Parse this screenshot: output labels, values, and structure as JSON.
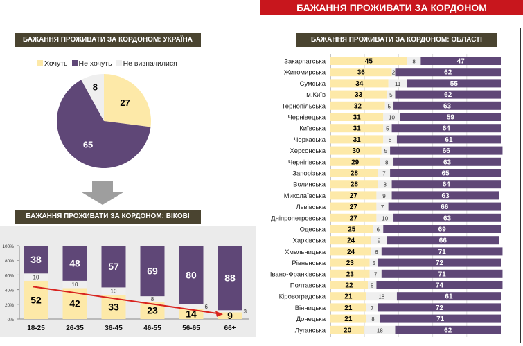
{
  "banner": "БАЖАННЯ ПРОЖИВАТИ ЗА КОРДОНОМ",
  "colors": {
    "want": "#fde9a8",
    "notwant": "#5f4777",
    "undecided": "#efefef",
    "trend": "#d8231e"
  },
  "chart_data": [
    {
      "type": "pie",
      "title": "БАЖАННЯ ПРОЖИВАТИ ЗА КОРДОНОМ: УКРАЇНА",
      "legend": [
        "Хочуть",
        "Не хочуть",
        "Не визначилися"
      ],
      "values": [
        27,
        65,
        8
      ]
    },
    {
      "type": "bar",
      "stacked": true,
      "title": "БАЖАННЯ ПРОЖИВАТИ ЗА КОРДОНОМ: ВІКОВІ ГРУПИ",
      "categories": [
        "18-25",
        "26-35",
        "36-45",
        "46-55",
        "56-65",
        "66+"
      ],
      "yticks": [
        "0%",
        "20%",
        "40%",
        "60%",
        "80%",
        "100%"
      ],
      "ylim": [
        0,
        100
      ],
      "series": [
        {
          "name": "Хочуть",
          "values": [
            52,
            42,
            33,
            23,
            14,
            9
          ]
        },
        {
          "name": "Не визначилися",
          "values": [
            10,
            10,
            10,
            8,
            6,
            3
          ]
        },
        {
          "name": "Не хочуть",
          "values": [
            38,
            48,
            57,
            69,
            80,
            88
          ]
        }
      ]
    },
    {
      "type": "bar",
      "orientation": "horizontal",
      "stacked": true,
      "title": "БАЖАННЯ ПРОЖИВАТИ ЗА КОРДОНОМ: ОБЛАСТІ",
      "categories": [
        "Закарпатська",
        "Житомирська",
        "Сумська",
        "м.Київ",
        "Тернопільська",
        "Чернівецька",
        "Київська",
        "Черкаська",
        "Херсонська",
        "Чернігівська",
        "Запорізька",
        "Волинська",
        "Миколаївська",
        "Львівська",
        "Дніпропетровська",
        "Одеська",
        "Харківська",
        "Хмельницька",
        "Рівненська",
        "Івано-Франківська",
        "Полтавська",
        "Кіровоградська",
        "Вінницька",
        "Донецька",
        "Луганська"
      ],
      "series": [
        {
          "name": "Хочуть",
          "values": [
            45,
            36,
            34,
            33,
            32,
            31,
            31,
            31,
            30,
            29,
            28,
            28,
            27,
            27,
            27,
            25,
            24,
            24,
            23,
            23,
            22,
            21,
            21,
            21,
            20
          ]
        },
        {
          "name": "Не визначилися",
          "values": [
            8,
            2,
            11,
            5,
            5,
            10,
            5,
            8,
            5,
            8,
            7,
            8,
            9,
            7,
            10,
            6,
            9,
            6,
            5,
            7,
            5,
            18,
            7,
            8,
            18
          ]
        },
        {
          "name": "Не хочуть",
          "values": [
            47,
            62,
            55,
            62,
            63,
            59,
            64,
            61,
            66,
            63,
            65,
            64,
            63,
            66,
            63,
            69,
            66,
            71,
            72,
            71,
            74,
            61,
            72,
            71,
            62
          ]
        }
      ]
    }
  ]
}
